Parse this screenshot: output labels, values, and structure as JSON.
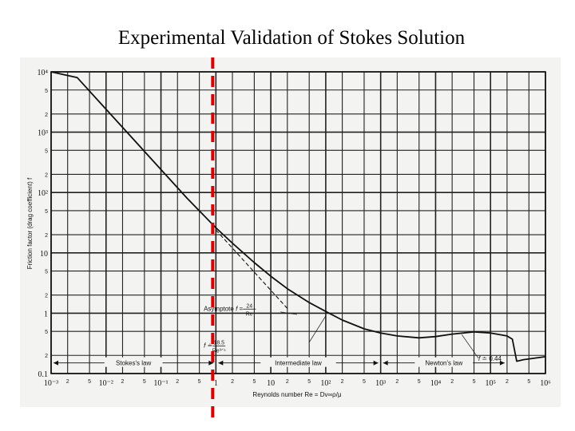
{
  "slide": {
    "title": "Experimental Validation of Stokes Solution"
  },
  "chart_data": {
    "type": "line",
    "title": "Experimental Validation of Stokes Solution",
    "xlabel": "Reynolds number Re = Dv∞ρ/μ",
    "ylabel": "Friction factor (drag coefficient) f",
    "xscale": "log",
    "yscale": "log",
    "xlim": [
      0.001,
      1000000
    ],
    "ylim": [
      0.1,
      10000
    ],
    "grid": true,
    "x_major_ticks": [
      {
        "value": 0.001,
        "label": "10⁻³"
      },
      {
        "value": 0.01,
        "label": "10⁻²"
      },
      {
        "value": 0.1,
        "label": "10⁻¹"
      },
      {
        "value": 1,
        "label": "1"
      },
      {
        "value": 10,
        "label": "10"
      },
      {
        "value": 100,
        "label": "10²"
      },
      {
        "value": 1000,
        "label": "10³"
      },
      {
        "value": 10000,
        "label": "10⁴"
      },
      {
        "value": 100000,
        "label": "10⁵"
      },
      {
        "value": 1000000,
        "label": "10⁶"
      }
    ],
    "x_minor_labels": [
      "2",
      "5"
    ],
    "y_major_ticks": [
      {
        "value": 0.1,
        "label": "0.1"
      },
      {
        "value": 1,
        "label": "1"
      },
      {
        "value": 10,
        "label": "10"
      },
      {
        "value": 100,
        "label": "10²"
      },
      {
        "value": 1000,
        "label": "10³"
      },
      {
        "value": 10000,
        "label": "10⁴"
      }
    ],
    "y_minor_labels": [
      "2",
      "5"
    ],
    "series": [
      {
        "name": "f",
        "style": "solid",
        "x": [
          0.001,
          0.003,
          0.01,
          0.03,
          0.1,
          0.3,
          1,
          2,
          5,
          10,
          20,
          50,
          100,
          200,
          500,
          1000,
          2000,
          5000,
          10000,
          20000,
          50000,
          100000,
          200000,
          250000,
          300000,
          400000,
          1000000
        ],
        "y": [
          24000,
          8000,
          2400,
          800,
          240,
          80,
          26,
          14.5,
          6.9,
          4.1,
          2.55,
          1.5,
          1.07,
          0.77,
          0.55,
          0.47,
          0.42,
          0.39,
          0.41,
          0.45,
          0.49,
          0.47,
          0.42,
          0.37,
          0.16,
          0.17,
          0.19
        ]
      },
      {
        "name": "Asymptote f = 24/Re",
        "style": "dashed",
        "x": [
          1,
          3,
          10,
          20
        ],
        "y": [
          24,
          8,
          2.4,
          1.2
        ]
      }
    ],
    "annotations": [
      {
        "text_parts": [
          "Asymptote ",
          "f",
          " = "
        ],
        "fraction": [
          "24",
          "Re"
        ]
      },
      {
        "text_parts": [
          "f",
          " ≐ "
        ],
        "fraction": [
          "18.5",
          "Re³ᐟ⁵"
        ]
      },
      {
        "text_parts": [
          "f",
          " ≐ 0.44"
        ]
      }
    ],
    "regions": [
      {
        "label": "Stokes's law",
        "from": 0.001,
        "to": 1
      },
      {
        "label": "Intermediate law",
        "from": 1,
        "to": 1000
      },
      {
        "label": "Newton's law",
        "from": 1000,
        "to": 200000
      }
    ],
    "reference_line": {
      "x": 1,
      "color": "#dd0000",
      "style": "dashed"
    }
  }
}
